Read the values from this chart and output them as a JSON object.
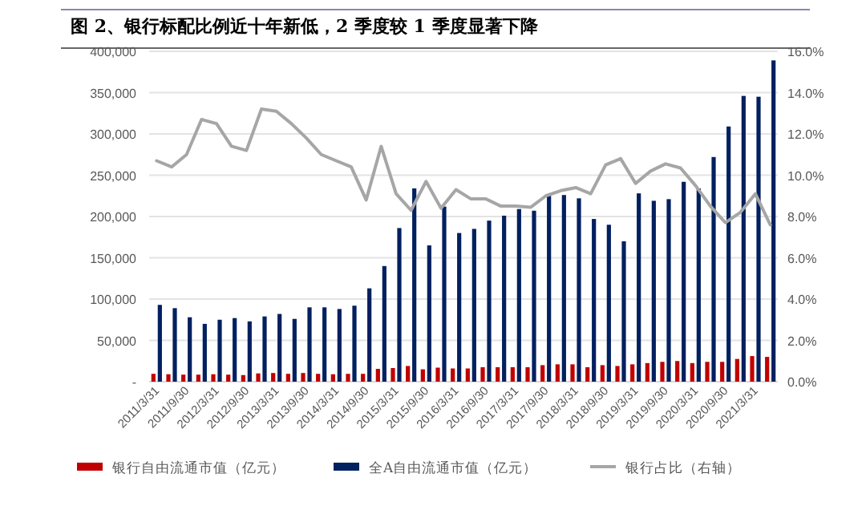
{
  "chart_data": {
    "type": "bar",
    "title": "图 2、银行标配比例近十年新低，2 季度较 1 季度显著下降",
    "categories": [
      "2011/3/31",
      null,
      "2011/9/30",
      null,
      "2012/3/31",
      null,
      "2012/9/30",
      null,
      "2013/3/31",
      null,
      "2013/9/30",
      null,
      "2014/3/31",
      null,
      "2014/9/30",
      null,
      "2015/3/31",
      null,
      "2015/9/30",
      null,
      "2016/3/31",
      null,
      "2016/9/30",
      null,
      "2017/3/31",
      null,
      "2017/9/30",
      null,
      "2018/3/31",
      null,
      "2018/9/30",
      null,
      "2019/3/31",
      null,
      "2019/9/30",
      null,
      "2020/3/31",
      null,
      "2020/9/30",
      null,
      "2021/3/31",
      null
    ],
    "series": [
      {
        "name": "银行自由流通市值（亿元）",
        "color": "#c00000",
        "values": [
          9500,
          9000,
          8500,
          8500,
          9000,
          8500,
          8000,
          10000,
          10500,
          9500,
          10500,
          9500,
          9000,
          9500,
          9500,
          15500,
          16500,
          19000,
          15000,
          17000,
          16000,
          16000,
          17500,
          17500,
          17500,
          17500,
          20000,
          21000,
          21000,
          17500,
          20000,
          19000,
          21000,
          22500,
          24000,
          25000,
          22500,
          24000,
          24000,
          27500,
          31000,
          30000
        ]
      },
      {
        "name": "全A自由流通市值（亿元）",
        "color": "#002060",
        "values": [
          93000,
          89000,
          78000,
          70000,
          75000,
          77000,
          73000,
          79000,
          82000,
          76000,
          90000,
          90000,
          88000,
          92000,
          113000,
          140000,
          186000,
          234000,
          165000,
          212000,
          180000,
          185000,
          195000,
          201000,
          209000,
          207000,
          225000,
          226000,
          222000,
          197000,
          190000,
          170000,
          228000,
          219000,
          221000,
          242000,
          234000,
          272000,
          309000,
          346000,
          345000,
          389000
        ]
      },
      {
        "name": "银行占比（右轴）",
        "type": "line",
        "axis": "y2",
        "color": "#a6a6a6",
        "values": [
          10.7,
          10.4,
          11.0,
          12.7,
          12.5,
          11.4,
          11.2,
          13.2,
          13.1,
          12.5,
          11.8,
          11.0,
          10.7,
          10.4,
          8.8,
          11.4,
          9.1,
          8.3,
          9.7,
          8.4,
          9.3,
          8.85,
          8.85,
          8.5,
          8.5,
          8.45,
          9.0,
          9.25,
          9.4,
          9.1,
          10.5,
          10.8,
          9.6,
          10.2,
          10.55,
          10.35,
          9.5,
          8.5,
          7.7,
          8.2,
          9.1,
          7.6
        ]
      }
    ],
    "ylim": [
      0,
      400000
    ],
    "yticks": [
      {
        "value": 0,
        "label": "-"
      },
      {
        "value": 50000,
        "label": "50,000"
      },
      {
        "value": 100000,
        "label": "100,000"
      },
      {
        "value": 150000,
        "label": "150,000"
      },
      {
        "value": 200000,
        "label": "200,000"
      },
      {
        "value": 250000,
        "label": "250,000"
      },
      {
        "value": 300000,
        "label": "300,000"
      },
      {
        "value": 350000,
        "label": "350,000"
      },
      {
        "value": 400000,
        "label": "400,000"
      }
    ],
    "y2lim": [
      0,
      16
    ],
    "y2ticks": [
      {
        "value": 0,
        "label": "0.0%"
      },
      {
        "value": 2,
        "label": "2.0%"
      },
      {
        "value": 4,
        "label": "4.0%"
      },
      {
        "value": 6,
        "label": "6.0%"
      },
      {
        "value": 8,
        "label": "8.0%"
      },
      {
        "value": 10,
        "label": "10.0%"
      },
      {
        "value": 12,
        "label": "12.0%"
      },
      {
        "value": 14,
        "label": "14.0%"
      },
      {
        "value": 16,
        "label": "16.0%"
      }
    ],
    "grid": "y",
    "legend": "bottom"
  }
}
